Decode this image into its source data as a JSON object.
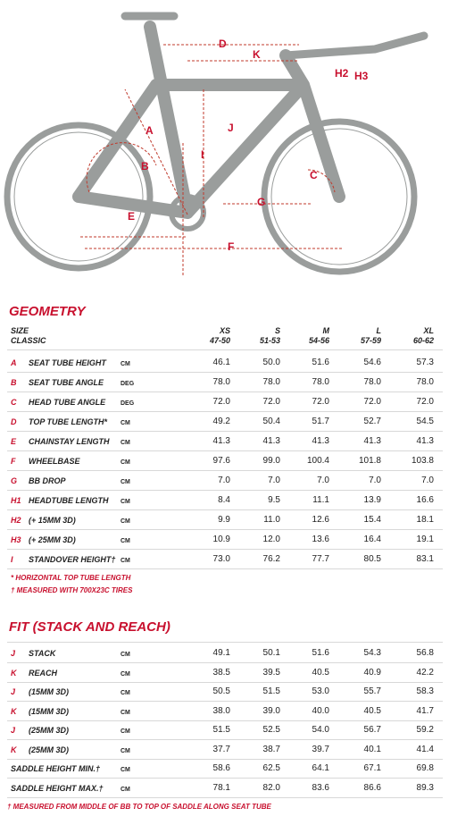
{
  "diagram": {
    "labels": [
      "D",
      "K",
      "H2",
      "H3",
      "J",
      "A",
      "B",
      "I",
      "G",
      "C",
      "E",
      "F"
    ]
  },
  "geometry": {
    "title": "GEOMETRY",
    "size_label": "SIZE",
    "model_label": "CLASSIC",
    "sizes": [
      {
        "name": "XS",
        "range": "47-50"
      },
      {
        "name": "S",
        "range": "51-53"
      },
      {
        "name": "M",
        "range": "54-56"
      },
      {
        "name": "L",
        "range": "57-59"
      },
      {
        "name": "XL",
        "range": "60-62"
      }
    ],
    "rows": [
      {
        "letter": "A",
        "name": "SEAT TUBE HEIGHT",
        "unit": "CM",
        "values": [
          "46.1",
          "50.0",
          "51.6",
          "54.6",
          "57.3"
        ]
      },
      {
        "letter": "B",
        "name": "SEAT TUBE ANGLE",
        "unit": "DEG",
        "values": [
          "78.0",
          "78.0",
          "78.0",
          "78.0",
          "78.0"
        ]
      },
      {
        "letter": "C",
        "name": "HEAD TUBE ANGLE",
        "unit": "DEG",
        "values": [
          "72.0",
          "72.0",
          "72.0",
          "72.0",
          "72.0"
        ]
      },
      {
        "letter": "D",
        "name": "TOP TUBE LENGTH*",
        "unit": "CM",
        "values": [
          "49.2",
          "50.4",
          "51.7",
          "52.7",
          "54.5"
        ]
      },
      {
        "letter": "E",
        "name": "CHAINSTAY LENGTH",
        "unit": "CM",
        "values": [
          "41.3",
          "41.3",
          "41.3",
          "41.3",
          "41.3"
        ]
      },
      {
        "letter": "F",
        "name": "WHEELBASE",
        "unit": "CM",
        "values": [
          "97.6",
          "99.0",
          "100.4",
          "101.8",
          "103.8"
        ]
      },
      {
        "letter": "G",
        "name": "BB DROP",
        "unit": "CM",
        "values": [
          "7.0",
          "7.0",
          "7.0",
          "7.0",
          "7.0"
        ]
      },
      {
        "letter": "H1",
        "name": "HEADTUBE LENGTH",
        "unit": "CM",
        "values": [
          "8.4",
          "9.5",
          "11.1",
          "13.9",
          "16.6"
        ]
      },
      {
        "letter": "H2",
        "name": "(+ 15MM 3D)",
        "unit": "CM",
        "values": [
          "9.9",
          "11.0",
          "12.6",
          "15.4",
          "18.1"
        ]
      },
      {
        "letter": "H3",
        "name": "(+ 25MM 3D)",
        "unit": "CM",
        "values": [
          "10.9",
          "12.0",
          "13.6",
          "16.4",
          "19.1"
        ]
      },
      {
        "letter": "I",
        "name": "STANDOVER HEIGHT†",
        "unit": "CM",
        "values": [
          "73.0",
          "76.2",
          "77.7",
          "80.5",
          "83.1"
        ]
      }
    ],
    "notes": [
      "* HORIZONTAL TOP TUBE LENGTH",
      "† MEASURED WITH 700X23C TIRES"
    ]
  },
  "fit": {
    "title": "FIT (STACK AND REACH)",
    "rows": [
      {
        "letter": "J",
        "name": "STACK",
        "unit": "CM",
        "values": [
          "49.1",
          "50.1",
          "51.6",
          "54.3",
          "56.8"
        ]
      },
      {
        "letter": "K",
        "name": "REACH",
        "unit": "CM",
        "values": [
          "38.5",
          "39.5",
          "40.5",
          "40.9",
          "42.2"
        ]
      },
      {
        "letter": "J",
        "name": "(15MM 3D)",
        "unit": "CM",
        "values": [
          "50.5",
          "51.5",
          "53.0",
          "55.7",
          "58.3"
        ]
      },
      {
        "letter": "K",
        "name": "(15MM 3D)",
        "unit": "CM",
        "values": [
          "38.0",
          "39.0",
          "40.0",
          "40.5",
          "41.7"
        ]
      },
      {
        "letter": "J",
        "name": "(25MM 3D)",
        "unit": "CM",
        "values": [
          "51.5",
          "52.5",
          "54.0",
          "56.7",
          "59.2"
        ]
      },
      {
        "letter": "K",
        "name": "(25MM 3D)",
        "unit": "CM",
        "values": [
          "37.7",
          "38.7",
          "39.7",
          "40.1",
          "41.4"
        ]
      },
      {
        "name": "SADDLE HEIGHT MIN.†",
        "unit": "CM",
        "values": [
          "58.6",
          "62.5",
          "64.1",
          "67.1",
          "69.8"
        ]
      },
      {
        "name": "SADDLE HEIGHT MAX.†",
        "unit": "CM",
        "values": [
          "78.1",
          "82.0",
          "83.6",
          "86.6",
          "89.3"
        ]
      }
    ],
    "note": "† MEASURED FROM MIDDLE OF BB TO TOP OF SADDLE ALONG SEAT TUBE"
  }
}
